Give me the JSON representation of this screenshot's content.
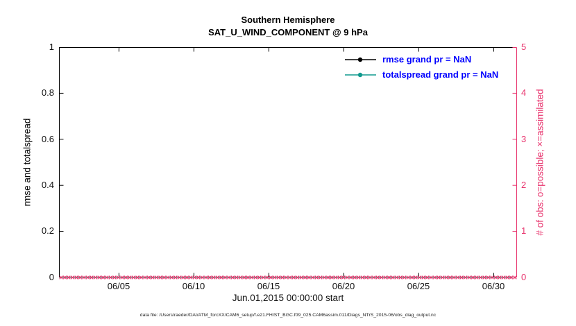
{
  "title": {
    "line1": "Southern Hemisphere",
    "line2": "SAT_U_WIND_COMPONENT @ 9 hPa"
  },
  "axes": {
    "left_label": "rmse and totalspread",
    "right_label": "# of obs: o=possible; ×=assimilated",
    "x_label": "Jun.01,2015 00:00:00 start",
    "left_ticks": [
      "0",
      "0.2",
      "0.4",
      "0.6",
      "0.8",
      "1"
    ],
    "right_ticks": [
      "0",
      "1",
      "2",
      "3",
      "4",
      "5"
    ],
    "x_ticks": [
      "06/05",
      "06/10",
      "06/15",
      "06/20",
      "06/25",
      "06/30"
    ]
  },
  "legend": {
    "items": [
      {
        "label": "rmse grand pr = NaN",
        "color": "#000000"
      },
      {
        "label": "totalspread grand pr = NaN",
        "color": "#119a8e"
      }
    ],
    "text_color": "#0000ff"
  },
  "colors": {
    "right_axis": "#e8336d",
    "marker": "#e8336d",
    "rmse": "#000000",
    "totalspread": "#119a8e",
    "legend_text": "#0000ff"
  },
  "footer": "data file: /Users/raeder/DAI/ATM_forcXX/CAM6_setup/f.e21.FHIST_BGC.f09_025.CAM6assim.011/Diags_NTrS_2015-06/obs_diag_output.nc",
  "chart_data": {
    "type": "line",
    "title": "Southern Hemisphere",
    "subtitle": "SAT_U_WIND_COMPONENT @ 9 hPa",
    "xlabel": "Jun.01,2015 00:00:00 start",
    "ylabel_left": "rmse and totalspread",
    "ylabel_right": "# of obs: o=possible; ×=assimilated",
    "x_tick_labels": [
      "06/05",
      "06/10",
      "06/15",
      "06/20",
      "06/25",
      "06/30"
    ],
    "x_range_days": [
      0,
      30.5
    ],
    "ylim_left": [
      0,
      1
    ],
    "ylim_right": [
      0,
      5
    ],
    "grid": false,
    "legend_position": "upper-right-inside",
    "series": [
      {
        "name": "rmse",
        "grand_pr": "NaN",
        "values": [],
        "note": "no curve drawn (all NaN)"
      },
      {
        "name": "totalspread",
        "grand_pr": "NaN",
        "values": [],
        "note": "no curve drawn (all NaN)"
      }
    ],
    "obs": {
      "possible_value": 0,
      "assimilated_value": 0,
      "n_marker_columns": 120,
      "marker_y_right_axis": 0,
      "marker_symbols": "× (assimilated) overlapping o (possible), all at 0"
    }
  }
}
